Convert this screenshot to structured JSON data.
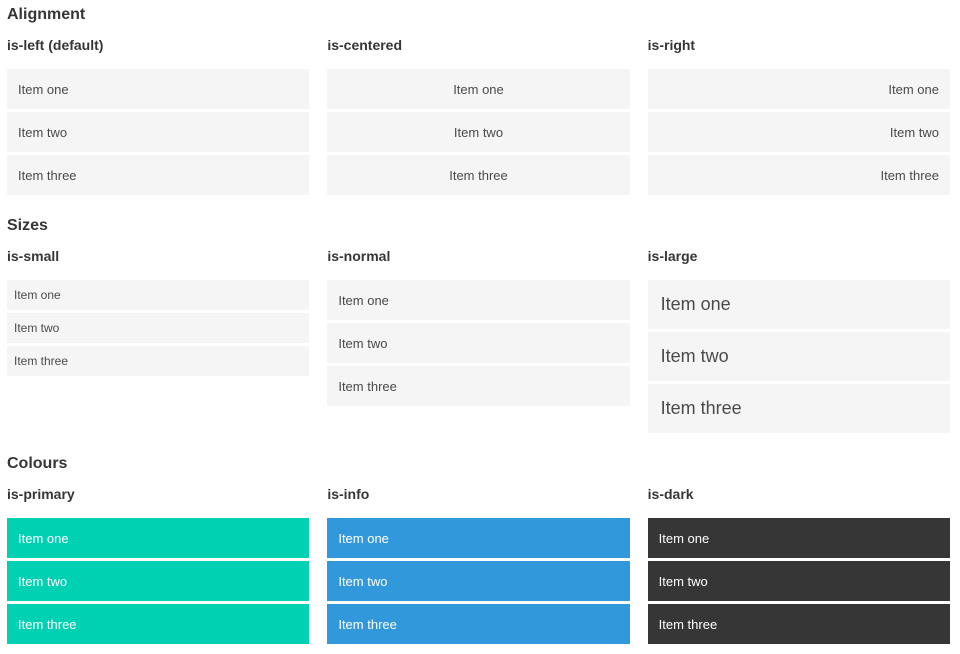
{
  "page": {
    "sections": [
      {
        "title": "Alignment",
        "columns": [
          {
            "heading": "is-left (default)",
            "modifier": "is-left",
            "items": [
              "Item one",
              "Item two",
              "Item three"
            ]
          },
          {
            "heading": "is-centered",
            "modifier": "is-centered",
            "items": [
              "Item one",
              "Item two",
              "Item three"
            ]
          },
          {
            "heading": "is-right",
            "modifier": "is-right",
            "items": [
              "Item one",
              "Item two",
              "Item three"
            ]
          }
        ]
      },
      {
        "title": "Sizes",
        "columns": [
          {
            "heading": "is-small",
            "modifier": "is-small",
            "items": [
              "Item one",
              "Item two",
              "Item three"
            ]
          },
          {
            "heading": "is-normal",
            "modifier": "is-normal",
            "items": [
              "Item one",
              "Item two",
              "Item three"
            ]
          },
          {
            "heading": "is-large",
            "modifier": "is-large",
            "items": [
              "Item one",
              "Item two",
              "Item three"
            ]
          }
        ]
      },
      {
        "title": "Colours",
        "columns": [
          {
            "heading": "is-primary",
            "modifier": "is-primary",
            "items": [
              "Item one",
              "Item two",
              "Item three"
            ]
          },
          {
            "heading": "is-info",
            "modifier": "is-info",
            "items": [
              "Item one",
              "Item two",
              "Item three"
            ]
          },
          {
            "heading": "is-dark",
            "modifier": "is-dark",
            "items": [
              "Item one",
              "Item two",
              "Item three"
            ]
          }
        ]
      }
    ]
  },
  "colors": {
    "primary": "#00d1b2",
    "info": "#3298dc",
    "dark": "#363636",
    "item_background": "#f5f5f5",
    "heading_text": "#363636",
    "item_text": "#4a4a4a",
    "colored_item_text": "#ffffff"
  }
}
